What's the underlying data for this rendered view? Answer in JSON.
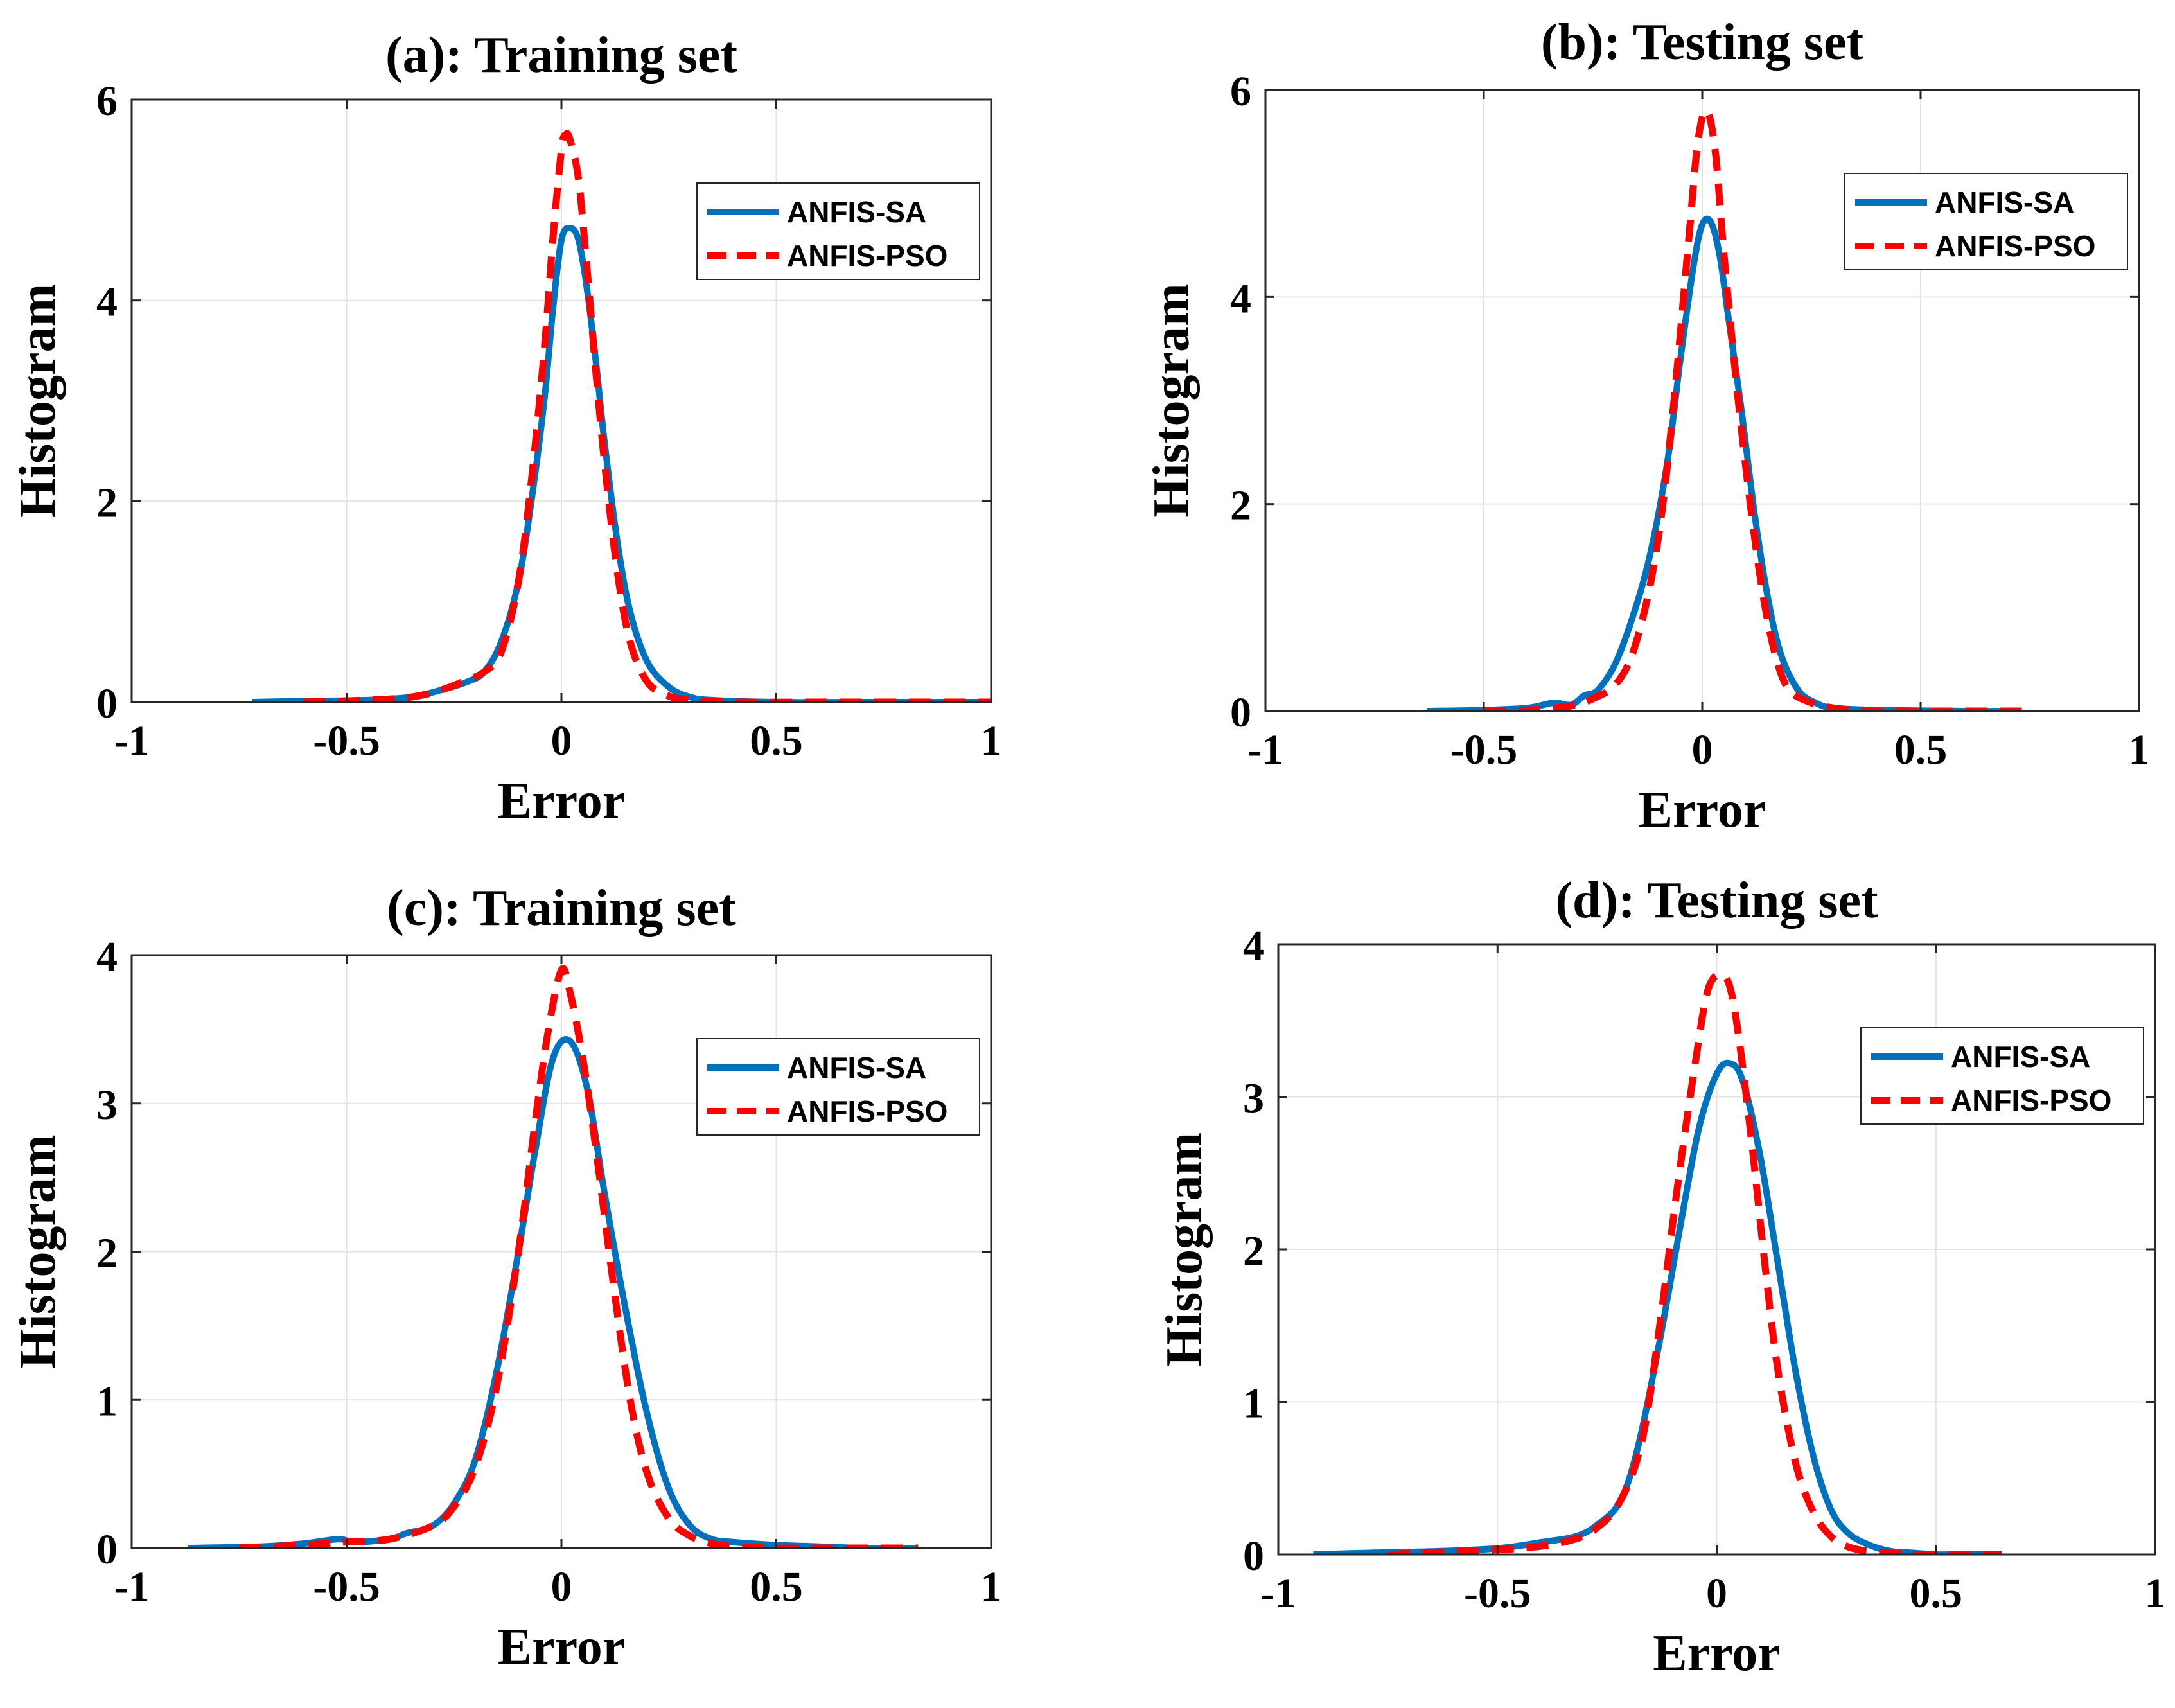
{
  "chart_data": [
    {
      "type": "line",
      "title": "(a): Training set",
      "xlabel": "Error",
      "ylabel": "Histogram",
      "xlim": [
        -1,
        1
      ],
      "ylim": [
        0,
        6
      ],
      "xticks": [
        -1,
        -0.5,
        0,
        0.5,
        1
      ],
      "xtick_labels": [
        "-1",
        "-0.5",
        "0",
        "0.5",
        "1"
      ],
      "yticks": [
        0,
        2,
        4,
        6
      ],
      "ytick_labels": [
        "0",
        "2",
        "4",
        "6"
      ],
      "grid": true,
      "legend_position": "top-right",
      "series": [
        {
          "name": "ANFIS-SA",
          "color": "#0072BD",
          "style": "solid",
          "x": [
            -0.72,
            -0.6,
            -0.45,
            -0.35,
            -0.28,
            -0.22,
            -0.18,
            -0.14,
            -0.1,
            -0.07,
            -0.04,
            -0.02,
            0,
            0.02,
            0.04,
            0.06,
            0.08,
            0.1,
            0.13,
            0.16,
            0.2,
            0.25,
            0.3,
            0.35,
            0.5,
            0.7,
            1.0
          ],
          "y": [
            0,
            0.01,
            0.02,
            0.05,
            0.12,
            0.2,
            0.3,
            0.6,
            1.2,
            2.0,
            3.0,
            3.9,
            4.6,
            4.72,
            4.6,
            4.1,
            3.4,
            2.6,
            1.6,
            0.9,
            0.4,
            0.15,
            0.05,
            0.02,
            0,
            0,
            0
          ]
        },
        {
          "name": "ANFIS-PSO",
          "color": "#FF0000",
          "style": "dashed",
          "x": [
            -0.6,
            -0.45,
            -0.35,
            -0.28,
            -0.22,
            -0.18,
            -0.14,
            -0.1,
            -0.07,
            -0.04,
            -0.02,
            0,
            0.01,
            0.02,
            0.04,
            0.06,
            0.08,
            0.1,
            0.13,
            0.16,
            0.2,
            0.25,
            0.3,
            0.4,
            0.6,
            0.8,
            1.0
          ],
          "y": [
            0,
            0.02,
            0.05,
            0.12,
            0.22,
            0.3,
            0.5,
            1.2,
            2.2,
            3.5,
            4.6,
            5.5,
            5.65,
            5.6,
            5.2,
            4.3,
            3.3,
            2.4,
            1.3,
            0.6,
            0.2,
            0.06,
            0.02,
            0,
            0,
            0,
            0
          ]
        }
      ]
    },
    {
      "type": "line",
      "title": "(b): Testing set",
      "xlabel": "Error",
      "ylabel": "Histogram",
      "xlim": [
        -1,
        1
      ],
      "ylim": [
        0,
        6
      ],
      "xticks": [
        -1,
        -0.5,
        0,
        0.5,
        1
      ],
      "xtick_labels": [
        "-1",
        "-0.5",
        "0",
        "0.5",
        "1"
      ],
      "yticks": [
        0,
        2,
        4,
        6
      ],
      "ytick_labels": [
        "0",
        "2",
        "4",
        "6"
      ],
      "grid": true,
      "legend_position": "top-right",
      "series": [
        {
          "name": "ANFIS-SA",
          "color": "#0072BD",
          "style": "solid",
          "x": [
            -0.63,
            -0.5,
            -0.4,
            -0.34,
            -0.3,
            -0.27,
            -0.24,
            -0.2,
            -0.16,
            -0.12,
            -0.08,
            -0.05,
            -0.02,
            0,
            0.02,
            0.04,
            0.06,
            0.09,
            0.12,
            0.15,
            0.18,
            0.22,
            0.26,
            0.3,
            0.4,
            0.6,
            0.72
          ],
          "y": [
            0,
            0.01,
            0.03,
            0.08,
            0.06,
            0.15,
            0.2,
            0.45,
            0.9,
            1.5,
            2.4,
            3.4,
            4.3,
            4.7,
            4.72,
            4.4,
            3.8,
            2.9,
            1.9,
            1.1,
            0.55,
            0.2,
            0.08,
            0.03,
            0.01,
            0,
            0
          ]
        },
        {
          "name": "ANFIS-PSO",
          "color": "#FF0000",
          "style": "dashed",
          "x": [
            -0.5,
            -0.4,
            -0.3,
            -0.25,
            -0.2,
            -0.16,
            -0.12,
            -0.09,
            -0.06,
            -0.03,
            -0.01,
            0.01,
            0.03,
            0.05,
            0.08,
            0.11,
            0.14,
            0.17,
            0.2,
            0.25,
            0.3,
            0.35,
            0.4,
            0.5,
            0.6,
            0.7,
            0.75
          ],
          "y": [
            0,
            0.01,
            0.05,
            0.12,
            0.25,
            0.55,
            1.2,
            2.0,
            3.2,
            4.6,
            5.5,
            5.8,
            5.4,
            4.4,
            3.1,
            2.0,
            1.1,
            0.5,
            0.2,
            0.08,
            0.03,
            0.01,
            0,
            0,
            0,
            0,
            0
          ]
        }
      ]
    },
    {
      "type": "line",
      "title": "(c): Training set",
      "xlabel": "Error",
      "ylabel": "Histogram",
      "xlim": [
        -1,
        1
      ],
      "ylim": [
        0,
        4
      ],
      "xticks": [
        -1,
        -0.5,
        0,
        0.5,
        1
      ],
      "xtick_labels": [
        "-1",
        "-0.5",
        "0",
        "0.5",
        "1"
      ],
      "yticks": [
        0,
        1,
        2,
        3,
        4
      ],
      "ytick_labels": [
        "0",
        "1",
        "2",
        "3",
        "4"
      ],
      "grid": true,
      "legend_position": "top-right",
      "series": [
        {
          "name": "ANFIS-SA",
          "color": "#0072BD",
          "style": "solid",
          "x": [
            -0.87,
            -0.7,
            -0.6,
            -0.52,
            -0.48,
            -0.4,
            -0.36,
            -0.3,
            -0.25,
            -0.2,
            -0.15,
            -0.1,
            -0.06,
            -0.02,
            0.02,
            0.06,
            0.1,
            0.15,
            0.2,
            0.25,
            0.3,
            0.35,
            0.4,
            0.5,
            0.6,
            0.7,
            0.83
          ],
          "y": [
            0,
            0.01,
            0.03,
            0.06,
            0.04,
            0.06,
            0.1,
            0.15,
            0.3,
            0.6,
            1.2,
            2.0,
            2.7,
            3.3,
            3.42,
            3.1,
            2.4,
            1.6,
            0.9,
            0.4,
            0.15,
            0.06,
            0.04,
            0.02,
            0.01,
            0,
            0
          ]
        },
        {
          "name": "ANFIS-PSO",
          "color": "#FF0000",
          "style": "dashed",
          "x": [
            -0.75,
            -0.6,
            -0.5,
            -0.4,
            -0.3,
            -0.25,
            -0.2,
            -0.15,
            -0.1,
            -0.06,
            -0.03,
            0,
            0.02,
            0.05,
            0.08,
            0.12,
            0.16,
            0.2,
            0.25,
            0.3,
            0.35,
            0.4,
            0.5,
            0.6,
            0.7,
            0.8,
            0.83
          ],
          "y": [
            0,
            0.02,
            0.04,
            0.06,
            0.15,
            0.28,
            0.55,
            1.1,
            2.0,
            2.9,
            3.5,
            3.9,
            3.75,
            3.3,
            2.7,
            1.8,
            1.0,
            0.5,
            0.2,
            0.08,
            0.03,
            0.01,
            0,
            0,
            0,
            0,
            0
          ]
        }
      ]
    },
    {
      "type": "line",
      "title": "(d): Testing set",
      "xlabel": "Error",
      "ylabel": "Histogram",
      "xlim": [
        -1,
        1
      ],
      "ylim": [
        0,
        4
      ],
      "xticks": [
        -1,
        -0.5,
        0,
        0.5,
        1
      ],
      "xtick_labels": [
        "-1",
        "-0.5",
        "0",
        "0.5",
        "1"
      ],
      "yticks": [
        0,
        1,
        2,
        3,
        4
      ],
      "ytick_labels": [
        "0",
        "1",
        "2",
        "3",
        "4"
      ],
      "grid": true,
      "legend_position": "top-right",
      "series": [
        {
          "name": "ANFIS-SA",
          "color": "#0072BD",
          "style": "solid",
          "x": [
            -0.92,
            -0.8,
            -0.65,
            -0.5,
            -0.4,
            -0.32,
            -0.27,
            -0.22,
            -0.18,
            -0.13,
            -0.08,
            -0.04,
            0,
            0.03,
            0.06,
            0.1,
            0.14,
            0.18,
            0.22,
            0.26,
            0.3,
            0.35,
            0.4,
            0.45,
            0.5,
            0.55,
            0.62
          ],
          "y": [
            0,
            0.01,
            0.02,
            0.04,
            0.08,
            0.12,
            0.2,
            0.35,
            0.7,
            1.4,
            2.2,
            2.8,
            3.15,
            3.22,
            3.1,
            2.6,
            1.9,
            1.2,
            0.65,
            0.3,
            0.14,
            0.06,
            0.02,
            0.01,
            0,
            0,
            0
          ]
        },
        {
          "name": "ANFIS-PSO",
          "color": "#FF0000",
          "style": "dashed",
          "x": [
            -0.75,
            -0.6,
            -0.45,
            -0.35,
            -0.28,
            -0.22,
            -0.17,
            -0.13,
            -0.09,
            -0.05,
            -0.02,
            0.01,
            0.03,
            0.05,
            0.08,
            0.11,
            0.14,
            0.18,
            0.22,
            0.26,
            0.3,
            0.35,
            0.4,
            0.45,
            0.5,
            0.55,
            0.65
          ],
          "y": [
            0,
            0.02,
            0.04,
            0.08,
            0.16,
            0.35,
            0.75,
            1.5,
            2.4,
            3.2,
            3.7,
            3.8,
            3.72,
            3.4,
            2.7,
            1.9,
            1.2,
            0.6,
            0.28,
            0.12,
            0.05,
            0.02,
            0.01,
            0,
            0,
            0,
            0
          ]
        }
      ]
    }
  ]
}
